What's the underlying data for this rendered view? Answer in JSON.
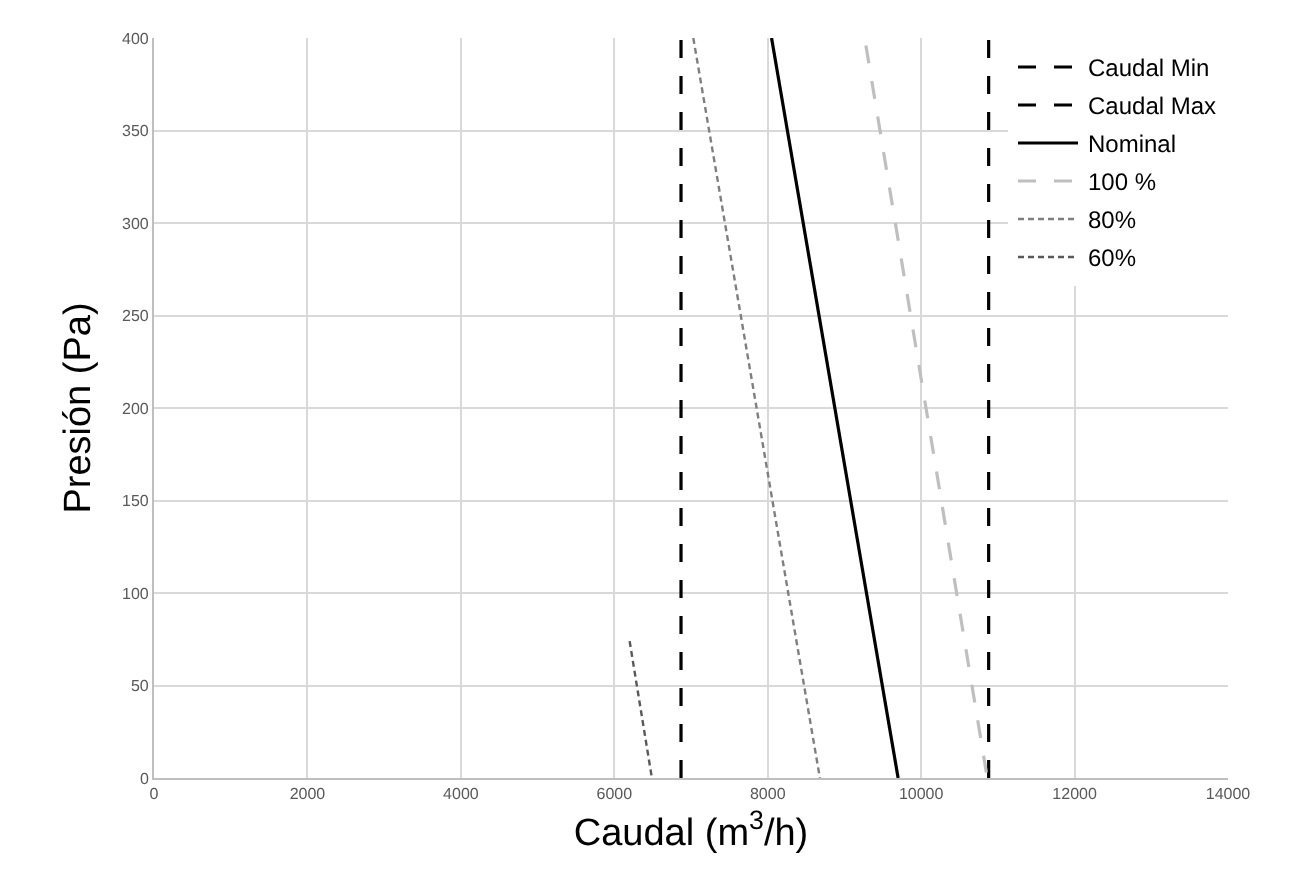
{
  "chart_data": {
    "type": "line",
    "xlabel": "Caudal (m$^{3}$/h)",
    "ylabel": "Presión (Pa)",
    "xlim": [
      0,
      14000
    ],
    "xticks": [
      0,
      2000,
      4000,
      6000,
      8000,
      10000,
      12000,
      14000
    ],
    "ylim": [
      0,
      400
    ],
    "yticks": [
      0,
      50,
      100,
      150,
      200,
      250,
      300,
      350,
      400
    ],
    "grid": true,
    "legend": "top right",
    "marker": "none",
    "series": [
      {
        "name": "Caudal Min",
        "color": "#000000",
        "line_style": "dashed",
        "x": [
          6870,
          6870
        ],
        "values": [
          0,
          400
        ]
      },
      {
        "name": "Caudal Max",
        "color": "#000000",
        "line_style": "dashed",
        "x": [
          10880,
          10880
        ],
        "values": [
          0,
          400
        ]
      },
      {
        "name": "Nominal",
        "color": "#000000",
        "line_style": "solid",
        "x": [
          8050,
          9700
        ],
        "values": [
          400,
          0
        ]
      },
      {
        "name": "100 %",
        "color": "#bfbfbf",
        "line_style": "dashed",
        "x": [
          9280,
          10850
        ],
        "values": [
          396,
          3
        ]
      },
      {
        "name": "80%",
        "color": "#7f7f7f",
        "line_style": "dotted",
        "x": [
          7030,
          8680
        ],
        "values": [
          400,
          0
        ]
      },
      {
        "name": "60%",
        "color": "#595959",
        "line_style": "dotted",
        "x": [
          6200,
          6490
        ],
        "values": [
          74,
          0
        ]
      }
    ]
  }
}
